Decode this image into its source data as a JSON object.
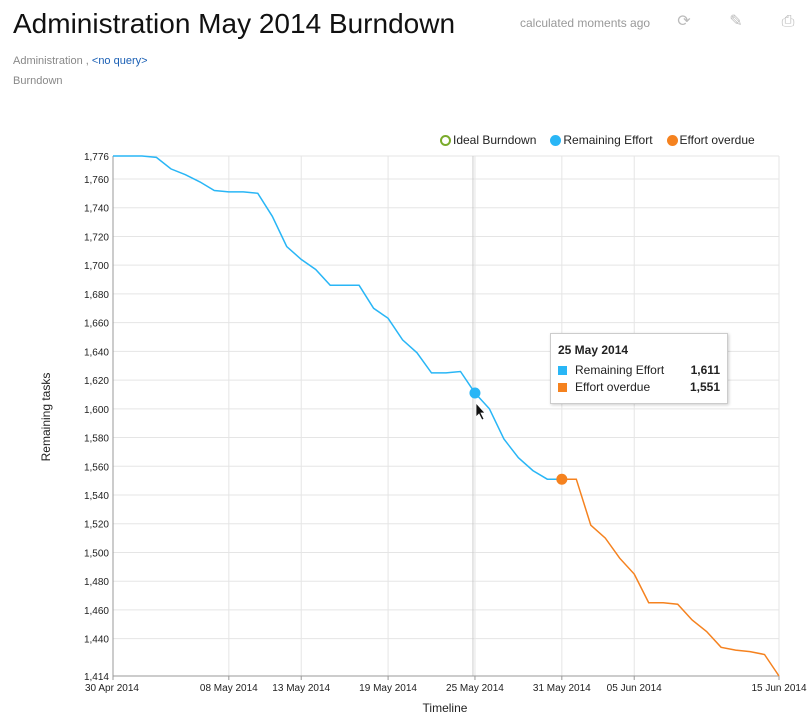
{
  "header": {
    "title": "Administration May 2014 Burndown",
    "calculated": "calculated moments ago",
    "tools": [
      {
        "icon": "refresh-icon",
        "glyph": "⟳"
      },
      {
        "icon": "edit-icon",
        "glyph": "✎"
      },
      {
        "icon": "print-icon",
        "glyph": "⎙"
      }
    ]
  },
  "breadcrumb": {
    "project": "Administration",
    "separator": " ,",
    "query": "<no query>"
  },
  "chart_type_label": "Burndown",
  "tooltip": {
    "date": "25 May 2014",
    "rows": [
      {
        "label": "Remaining Effort",
        "value": "1,611",
        "color": "#29b6f6"
      },
      {
        "label": "Effort overdue",
        "value": "1,551",
        "color": "#f5821f"
      }
    ]
  },
  "colors": {
    "remaining": "#29b6f6",
    "overdue": "#f5821f",
    "ideal": "#7aab2b",
    "grid": "#e5e5e5"
  },
  "chart_data": {
    "type": "line",
    "xlabel": "Timeline",
    "ylabel": "Remaining tasks",
    "ylim": [
      1414,
      1776
    ],
    "yticks": [
      1414,
      1440,
      1460,
      1480,
      1500,
      1520,
      1540,
      1560,
      1580,
      1600,
      1620,
      1640,
      1660,
      1680,
      1700,
      1720,
      1740,
      1760,
      1776
    ],
    "ytick_labels": [
      "1,414",
      "1,440",
      "1,460",
      "1,480",
      "1,500",
      "1,520",
      "1,540",
      "1,560",
      "1,580",
      "1,600",
      "1,620",
      "1,640",
      "1,660",
      "1,680",
      "1,700",
      "1,720",
      "1,740",
      "1,760",
      "1,776"
    ],
    "xlim": [
      "2014-04-30",
      "2014-06-15"
    ],
    "xticks": [
      "2014-04-30",
      "2014-05-08",
      "2014-05-13",
      "2014-05-19",
      "2014-05-25",
      "2014-05-31",
      "2014-06-05",
      "2014-06-15"
    ],
    "xtick_labels": [
      "30 Apr 2014",
      "08 May 2014",
      "13 May 2014",
      "19 May 2014",
      "25 May 2014",
      "31 May 2014",
      "05 Jun 2014",
      "15 Jun 2014"
    ],
    "grid": true,
    "legend_position": "top-right",
    "legend": [
      {
        "name": "Ideal Burndown",
        "style": "hollow"
      },
      {
        "name": "Remaining Effort",
        "style": "filled"
      },
      {
        "name": "Effort overdue",
        "style": "filled"
      }
    ],
    "series": [
      {
        "name": "Remaining Effort",
        "x": [
          "2014-04-30",
          "2014-05-01",
          "2014-05-02",
          "2014-05-03",
          "2014-05-04",
          "2014-05-05",
          "2014-05-06",
          "2014-05-07",
          "2014-05-08",
          "2014-05-09",
          "2014-05-10",
          "2014-05-11",
          "2014-05-12",
          "2014-05-13",
          "2014-05-14",
          "2014-05-15",
          "2014-05-16",
          "2014-05-17",
          "2014-05-18",
          "2014-05-19",
          "2014-05-20",
          "2014-05-21",
          "2014-05-22",
          "2014-05-23",
          "2014-05-24",
          "2014-05-25",
          "2014-05-26",
          "2014-05-27",
          "2014-05-28",
          "2014-05-29",
          "2014-05-30",
          "2014-05-31"
        ],
        "y": [
          1776,
          1776,
          1776,
          1775,
          1767,
          1763,
          1758,
          1752,
          1751,
          1751,
          1750,
          1734,
          1713,
          1704,
          1697,
          1686,
          1686,
          1686,
          1670,
          1663,
          1648,
          1639,
          1625,
          1625,
          1626,
          1611,
          1600,
          1579,
          1566,
          1557,
          1551,
          1551
        ]
      },
      {
        "name": "Effort overdue",
        "x": [
          "2014-05-31",
          "2014-06-01",
          "2014-06-02",
          "2014-06-03",
          "2014-06-04",
          "2014-06-05",
          "2014-06-06",
          "2014-06-07",
          "2014-06-08",
          "2014-06-09",
          "2014-06-10",
          "2014-06-11",
          "2014-06-12",
          "2014-06-13",
          "2014-06-14",
          "2014-06-15"
        ],
        "y": [
          1551,
          1551,
          1519,
          1510,
          1496,
          1485,
          1465,
          1465,
          1464,
          1453,
          1445,
          1434,
          1432,
          1431,
          1429,
          1414
        ]
      }
    ],
    "highlight_x": "2014-05-25",
    "highlight_points": [
      {
        "series": "Remaining Effort",
        "x": "2014-05-25",
        "y": 1611
      },
      {
        "series": "Effort overdue",
        "x": "2014-05-31",
        "y": 1551
      }
    ]
  }
}
